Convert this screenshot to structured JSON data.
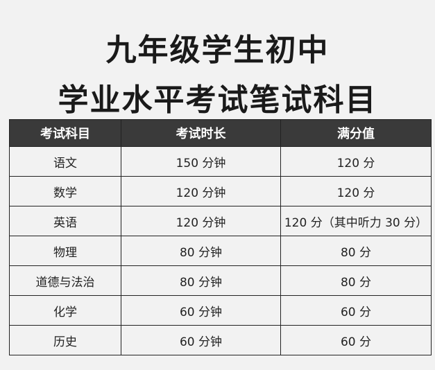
{
  "title_line1": "九年级学生初中",
  "title_line2": "学业水平考试笔试科目",
  "table": {
    "headers": [
      "考试科目",
      "考试时长",
      "满分值"
    ],
    "rows": [
      [
        "语文",
        "150 分钟",
        "120 分"
      ],
      [
        "数学",
        "120 分钟",
        "120 分"
      ],
      [
        "英语",
        "120 分钟",
        "120 分（其中听力 30 分）"
      ],
      [
        "物理",
        "80 分钟",
        "80 分"
      ],
      [
        "道德与法治",
        "80 分钟",
        "80 分"
      ],
      [
        "化学",
        "60 分钟",
        "60 分"
      ],
      [
        "历史",
        "60 分钟",
        "60 分"
      ]
    ]
  },
  "colors": {
    "header_bg": "#3a3a3a",
    "header_text": "#ffffff",
    "background": "#f2f2f2"
  }
}
